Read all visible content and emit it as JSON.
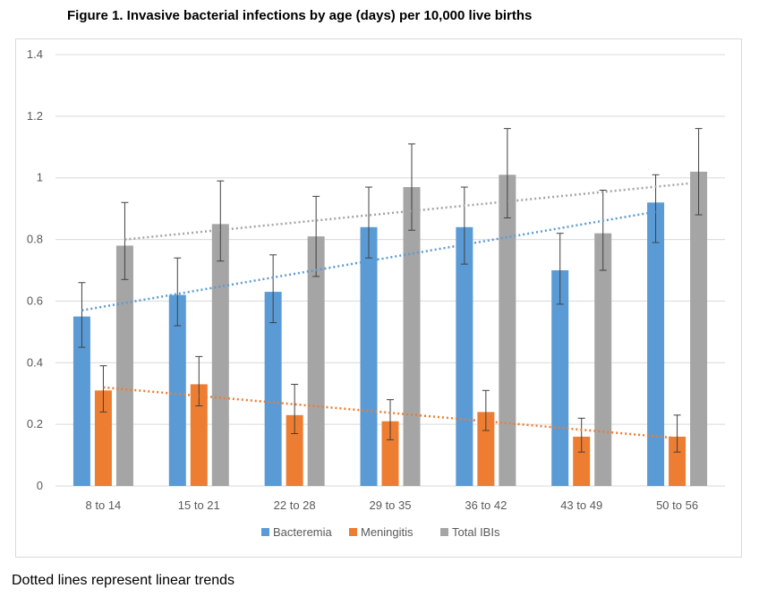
{
  "figure_title": "Figure 1. Invasive bacterial infections by age (days) per 10,000 live births",
  "footnote": "Dotted lines represent linear trends",
  "chart_data": {
    "type": "bar",
    "title": "",
    "xlabel": "",
    "ylabel": "",
    "categories": [
      "8 to 14",
      "15 to 21",
      "22 to 28",
      "29 to 35",
      "36 to 42",
      "43 to 49",
      "50 to 56"
    ],
    "ylim": [
      0,
      1.4
    ],
    "yticks": [
      0,
      0.2,
      0.4,
      0.6,
      0.8,
      1,
      1.2,
      1.4
    ],
    "ytick_labels": [
      "0",
      "0.2",
      "0.4",
      "0.6",
      "0.8",
      "1",
      "1.2",
      "1.4"
    ],
    "grid": true,
    "legend_position": "bottom",
    "series": [
      {
        "name": "Bacteremia",
        "color": "#5b9bd5",
        "values": [
          0.55,
          0.62,
          0.63,
          0.84,
          0.84,
          0.7,
          0.92
        ],
        "error_low": [
          0.45,
          0.52,
          0.53,
          0.74,
          0.72,
          0.59,
          0.79
        ],
        "error_high": [
          0.66,
          0.74,
          0.75,
          0.97,
          0.97,
          0.82,
          1.01
        ],
        "trend": [
          0.57,
          0.89
        ]
      },
      {
        "name": "Meningitis",
        "color": "#ed7d31",
        "values": [
          0.31,
          0.33,
          0.23,
          0.21,
          0.24,
          0.16,
          0.16
        ],
        "error_low": [
          0.24,
          0.26,
          0.17,
          0.15,
          0.18,
          0.11,
          0.11
        ],
        "error_high": [
          0.39,
          0.42,
          0.33,
          0.28,
          0.31,
          0.22,
          0.23
        ],
        "trend": [
          0.32,
          0.155
        ]
      },
      {
        "name": "Total IBIs",
        "color": "#a5a5a5",
        "values": [
          0.78,
          0.85,
          0.81,
          0.97,
          1.01,
          0.82,
          1.02
        ],
        "error_low": [
          0.67,
          0.73,
          0.68,
          0.83,
          0.87,
          0.7,
          0.88
        ],
        "error_high": [
          0.92,
          0.99,
          0.94,
          1.11,
          1.16,
          0.96,
          1.16
        ],
        "trend": [
          0.8,
          0.985
        ]
      }
    ]
  }
}
